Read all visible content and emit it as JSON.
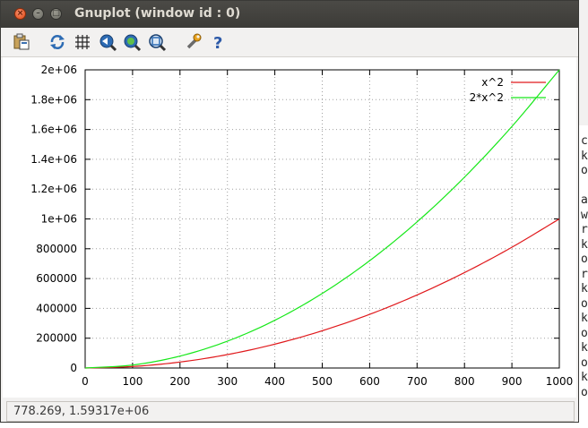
{
  "window": {
    "title": "Gnuplot (window id : 0)"
  },
  "toolbar": {
    "items": [
      {
        "name": "copy-clipboard-icon",
        "tooltip": ""
      },
      {
        "name": "replot-icon"
      },
      {
        "name": "grid-icon"
      },
      {
        "name": "zoom-previous-icon"
      },
      {
        "name": "zoom-next-icon"
      },
      {
        "name": "autoscale-icon"
      },
      {
        "name": "options-wrench-icon"
      },
      {
        "name": "help-icon"
      }
    ]
  },
  "status": {
    "coordinates": "778.269, 1.59317e+06"
  },
  "background_window": {
    "letters": [
      "c",
      "k",
      "o",
      "",
      "a",
      "w",
      "r",
      "k",
      "o",
      "r",
      "k",
      "o",
      "k",
      "o",
      "k",
      "o",
      "k",
      "o"
    ]
  },
  "chart_data": {
    "type": "line",
    "xlim": [
      0,
      1000
    ],
    "ylim": [
      0,
      2000000
    ],
    "x_ticks": [
      0,
      100,
      200,
      300,
      400,
      500,
      600,
      700,
      800,
      900,
      1000
    ],
    "x_tick_labels": [
      "0",
      "100",
      "200",
      "300",
      "400",
      "500",
      "600",
      "700",
      "800",
      "900",
      "1000"
    ],
    "y_ticks": [
      0,
      200000,
      400000,
      600000,
      800000,
      1000000,
      1200000,
      1400000,
      1600000,
      1800000,
      2000000
    ],
    "y_tick_labels": [
      "0",
      "200000",
      "400000",
      "600000",
      "800000",
      "1e+06",
      "1.2e+06",
      "1.4e+06",
      "1.6e+06",
      "1.8e+06",
      "2e+06"
    ],
    "grid": true,
    "legend_position": "top-right",
    "x": [
      0,
      100,
      200,
      300,
      400,
      500,
      600,
      700,
      800,
      900,
      1000
    ],
    "series": [
      {
        "name": "x^2",
        "color": "#e0191c",
        "values": [
          0,
          10000,
          40000,
          90000,
          160000,
          250000,
          360000,
          490000,
          640000,
          810000,
          1000000
        ]
      },
      {
        "name": "2*x^2",
        "color": "#17e81a",
        "values": [
          0,
          20000,
          80000,
          180000,
          320000,
          500000,
          720000,
          980000,
          1280000,
          1620000,
          2000000
        ]
      }
    ]
  }
}
